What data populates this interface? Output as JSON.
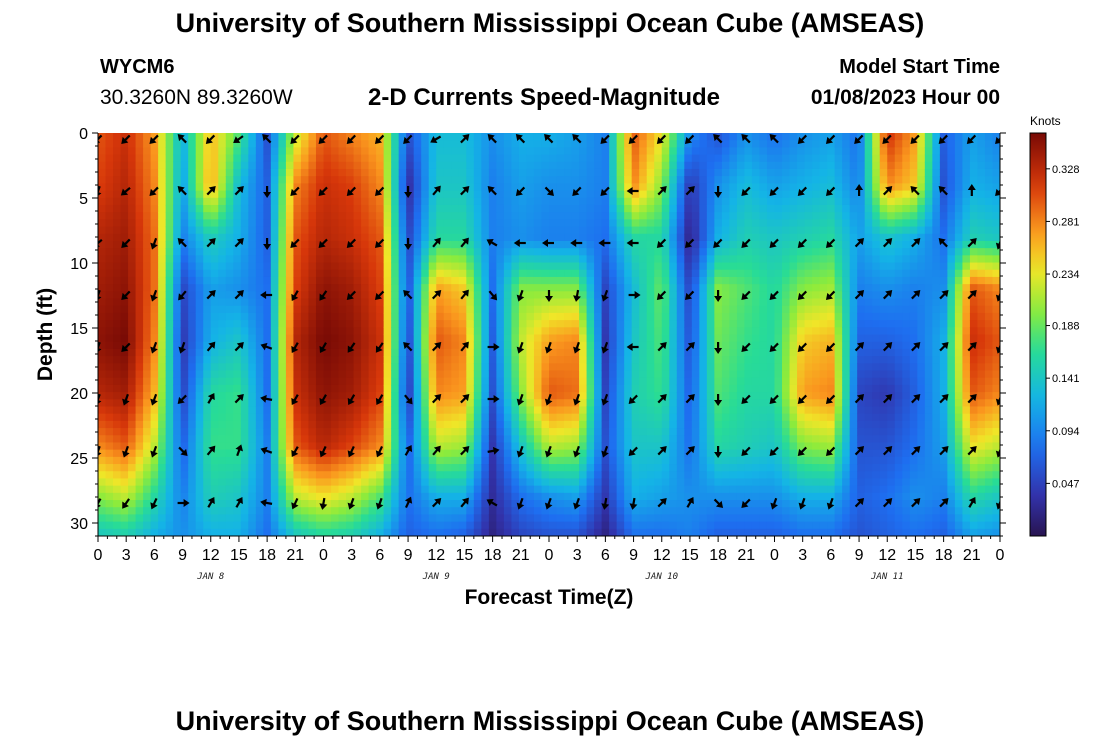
{
  "header": {
    "title": "University of Southern Mississippi Ocean Cube (AMSEAS)",
    "station_id": "WYCM6",
    "coordinates": "30.3260N  89.3260W",
    "chart_title": "2-D Currents Speed-Magnitude",
    "model_start_label": "Model Start Time",
    "model_start_value": "01/08/2023 Hour 00"
  },
  "footer": {
    "title": "University of Southern Mississippi Ocean Cube (AMSEAS)"
  },
  "chart_data": {
    "type": "heatmap",
    "title": "2-D Currents Speed-Magnitude",
    "xlabel": "Forecast Time(Z)",
    "ylabel": "Depth (ft)",
    "x_ticks": [
      "0",
      "3",
      "6",
      "9",
      "12",
      "15",
      "18",
      "21",
      "0",
      "3",
      "6",
      "9",
      "12",
      "15",
      "18",
      "21",
      "0",
      "3",
      "6",
      "9",
      "12",
      "15",
      "18",
      "21",
      "0",
      "3",
      "6",
      "9",
      "12",
      "15",
      "18",
      "21",
      "0"
    ],
    "x_range_hours": [
      0,
      96
    ],
    "day_labels": [
      {
        "label": "JAN 8",
        "hour": 12
      },
      {
        "label": "JAN 9",
        "hour": 36
      },
      {
        "label": "JAN 10",
        "hour": 60
      },
      {
        "label": "JAN 11",
        "hour": 84
      }
    ],
    "y_ticks": [
      0,
      5,
      10,
      15,
      20,
      25,
      30
    ],
    "y_range_ft": [
      0,
      31
    ],
    "colorbar": {
      "label": "Knots",
      "ticks": [
        "0.328",
        "0.281",
        "0.234",
        "0.188",
        "0.141",
        "0.094",
        "0.047"
      ],
      "tick_values": [
        0.328,
        0.281,
        0.234,
        0.188,
        0.141,
        0.094,
        0.047
      ],
      "range": [
        0.0,
        0.36
      ]
    },
    "speed_profiles": {
      "hours": [
        0,
        3,
        6,
        9,
        12,
        15,
        18,
        21,
        24,
        27,
        30,
        33,
        36,
        39,
        42,
        45,
        48,
        51,
        54,
        57,
        60,
        63,
        66,
        69,
        72,
        75,
        78,
        81,
        84,
        87,
        90,
        93,
        96
      ],
      "depths_ft": [
        0,
        4,
        8,
        12,
        16,
        20,
        24,
        28,
        31
      ],
      "speed_knots": [
        [
          0.3,
          0.31,
          0.33,
          0.34,
          0.35,
          0.33,
          0.28,
          0.2,
          0.14
        ],
        [
          0.32,
          0.33,
          0.34,
          0.35,
          0.36,
          0.34,
          0.3,
          0.22,
          0.15
        ],
        [
          0.27,
          0.28,
          0.29,
          0.29,
          0.28,
          0.26,
          0.22,
          0.16,
          0.12
        ],
        [
          0.12,
          0.11,
          0.09,
          0.05,
          0.04,
          0.05,
          0.07,
          0.09,
          0.1
        ],
        [
          0.26,
          0.27,
          0.15,
          0.11,
          0.12,
          0.16,
          0.17,
          0.15,
          0.12
        ],
        [
          0.18,
          0.13,
          0.12,
          0.1,
          0.14,
          0.17,
          0.17,
          0.14,
          0.12
        ],
        [
          0.06,
          0.07,
          0.07,
          0.08,
          0.08,
          0.08,
          0.09,
          0.09,
          0.08
        ],
        [
          0.22,
          0.28,
          0.3,
          0.31,
          0.33,
          0.32,
          0.3,
          0.22,
          0.14
        ],
        [
          0.3,
          0.32,
          0.33,
          0.35,
          0.36,
          0.35,
          0.33,
          0.24,
          0.16
        ],
        [
          0.28,
          0.31,
          0.32,
          0.34,
          0.35,
          0.34,
          0.31,
          0.22,
          0.15
        ],
        [
          0.26,
          0.28,
          0.3,
          0.31,
          0.32,
          0.31,
          0.28,
          0.18,
          0.12
        ],
        [
          0.06,
          0.03,
          0.05,
          0.06,
          0.05,
          0.04,
          0.07,
          0.08,
          0.07
        ],
        [
          0.13,
          0.14,
          0.16,
          0.27,
          0.3,
          0.28,
          0.22,
          0.12,
          0.08
        ],
        [
          0.13,
          0.14,
          0.16,
          0.25,
          0.28,
          0.27,
          0.21,
          0.12,
          0.07
        ],
        [
          0.1,
          0.09,
          0.09,
          0.08,
          0.07,
          0.06,
          0.04,
          0.03,
          0.02
        ],
        [
          0.12,
          0.11,
          0.1,
          0.2,
          0.22,
          0.2,
          0.14,
          0.08,
          0.05
        ],
        [
          0.12,
          0.1,
          0.09,
          0.2,
          0.27,
          0.3,
          0.22,
          0.1,
          0.06
        ],
        [
          0.11,
          0.1,
          0.09,
          0.2,
          0.28,
          0.29,
          0.21,
          0.11,
          0.06
        ],
        [
          0.09,
          0.09,
          0.08,
          0.05,
          0.04,
          0.05,
          0.06,
          0.04,
          0.02
        ],
        [
          0.3,
          0.28,
          0.16,
          0.13,
          0.14,
          0.15,
          0.14,
          0.12,
          0.08
        ],
        [
          0.24,
          0.2,
          0.16,
          0.19,
          0.18,
          0.17,
          0.14,
          0.11,
          0.08
        ],
        [
          0.1,
          0.04,
          0.02,
          0.05,
          0.06,
          0.07,
          0.08,
          0.1,
          0.09
        ],
        [
          0.06,
          0.1,
          0.12,
          0.2,
          0.19,
          0.18,
          0.16,
          0.1,
          0.07
        ],
        [
          0.1,
          0.13,
          0.15,
          0.18,
          0.17,
          0.16,
          0.15,
          0.1,
          0.07
        ],
        [
          0.08,
          0.11,
          0.14,
          0.16,
          0.16,
          0.16,
          0.14,
          0.1,
          0.07
        ],
        [
          0.1,
          0.12,
          0.15,
          0.2,
          0.25,
          0.27,
          0.2,
          0.12,
          0.08
        ],
        [
          0.11,
          0.13,
          0.16,
          0.21,
          0.26,
          0.28,
          0.21,
          0.12,
          0.08
        ],
        [
          0.08,
          0.09,
          0.11,
          0.09,
          0.07,
          0.05,
          0.06,
          0.07,
          0.06
        ],
        [
          0.32,
          0.28,
          0.14,
          0.1,
          0.07,
          0.04,
          0.06,
          0.08,
          0.07
        ],
        [
          0.27,
          0.25,
          0.12,
          0.09,
          0.08,
          0.07,
          0.08,
          0.1,
          0.08
        ],
        [
          0.07,
          0.06,
          0.08,
          0.1,
          0.12,
          0.12,
          0.11,
          0.09,
          0.07
        ],
        [
          0.11,
          0.12,
          0.15,
          0.3,
          0.32,
          0.3,
          0.24,
          0.16,
          0.11
        ],
        [
          0.09,
          0.11,
          0.14,
          0.28,
          0.3,
          0.28,
          0.22,
          0.14,
          0.1
        ]
      ]
    },
    "arrow_depths_ft": [
      0,
      4,
      8,
      12,
      16,
      20,
      24,
      28
    ],
    "arrow_directions_deg": [
      [
        225,
        200,
        230,
        200,
        200,
        200,
        200,
        210
      ],
      [
        225,
        230,
        225,
        225,
        225,
        200,
        200,
        215
      ],
      [
        225,
        225,
        200,
        200,
        200,
        200,
        200,
        205
      ],
      [
        315,
        315,
        315,
        220,
        200,
        225,
        135,
        90
      ],
      [
        225,
        45,
        45,
        45,
        40,
        30,
        40,
        30
      ],
      [
        235,
        45,
        45,
        45,
        45,
        45,
        20,
        30
      ],
      [
        315,
        180,
        180,
        270,
        290,
        280,
        290,
        280
      ],
      [
        225,
        225,
        225,
        210,
        210,
        210,
        210,
        205
      ],
      [
        225,
        225,
        225,
        215,
        210,
        210,
        205,
        190
      ],
      [
        225,
        225,
        225,
        225,
        215,
        210,
        205,
        200
      ],
      [
        225,
        225,
        225,
        225,
        215,
        210,
        205,
        200
      ],
      [
        225,
        180,
        180,
        315,
        315,
        140,
        30,
        25
      ],
      [
        240,
        40,
        40,
        45,
        45,
        45,
        40,
        45
      ],
      [
        45,
        45,
        40,
        40,
        40,
        45,
        45,
        40
      ],
      [
        315,
        315,
        300,
        140,
        90,
        90,
        80,
        300
      ],
      [
        315,
        225,
        270,
        200,
        200,
        200,
        200,
        200
      ],
      [
        315,
        135,
        270,
        180,
        200,
        200,
        200,
        200
      ],
      [
        315,
        225,
        270,
        190,
        200,
        200,
        200,
        200
      ],
      [
        225,
        225,
        270,
        200,
        200,
        200,
        200,
        190
      ],
      [
        225,
        270,
        270,
        90,
        270,
        225,
        225,
        190
      ],
      [
        225,
        45,
        225,
        225,
        45,
        45,
        45,
        45
      ],
      [
        225,
        45,
        225,
        225,
        45,
        45,
        45,
        30
      ],
      [
        315,
        180,
        225,
        180,
        180,
        180,
        180,
        135
      ],
      [
        315,
        225,
        225,
        225,
        225,
        225,
        225,
        225
      ],
      [
        315,
        225,
        225,
        225,
        225,
        225,
        225,
        200
      ],
      [
        225,
        225,
        225,
        225,
        225,
        225,
        225,
        200
      ],
      [
        225,
        225,
        225,
        225,
        225,
        225,
        225,
        200
      ],
      [
        225,
        0,
        45,
        45,
        45,
        45,
        45,
        45
      ],
      [
        225,
        45,
        45,
        45,
        45,
        45,
        45,
        45
      ],
      [
        225,
        315,
        45,
        45,
        45,
        45,
        45,
        45
      ],
      [
        225,
        315,
        315,
        45,
        45,
        45,
        45,
        45
      ],
      [
        225,
        0,
        45,
        45,
        45,
        45,
        45,
        30
      ],
      [
        225,
        225,
        200,
        200,
        200,
        200,
        200,
        200
      ]
    ]
  }
}
